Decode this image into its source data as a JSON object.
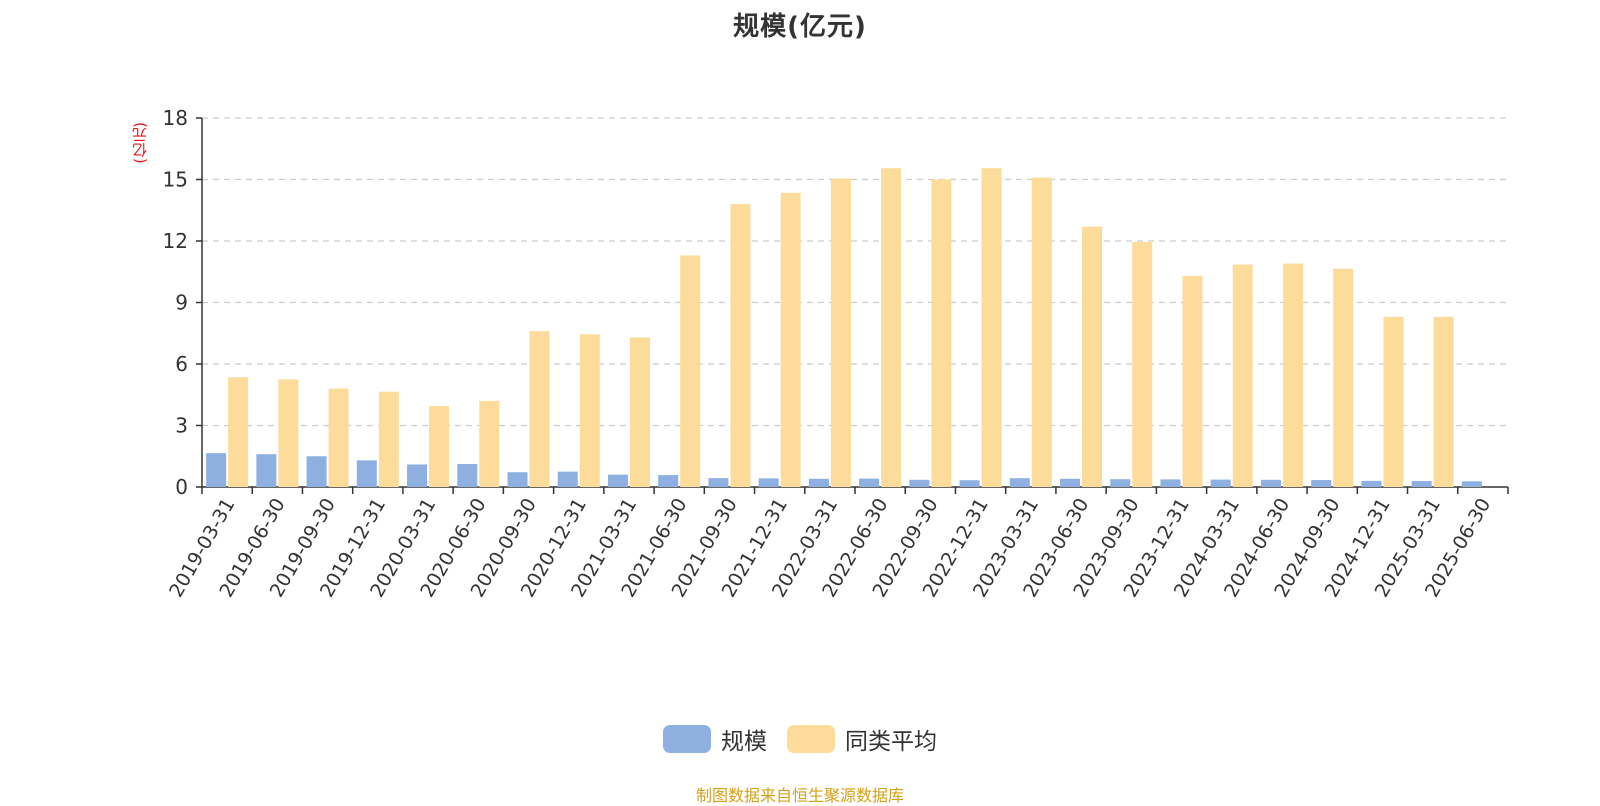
{
  "title": "规模(亿元)",
  "unit_label": "(亿元)",
  "source_note": "制图数据来自恒生聚源数据库",
  "legend": [
    {
      "label": "规模",
      "color": "#8eb0e0"
    },
    {
      "label": "同类平均",
      "color": "#fddb9b"
    }
  ],
  "colors": {
    "unit_label": "#e8141b",
    "source_note": "#d4a017",
    "grid": "#cccccc",
    "axis": "#333333"
  },
  "chart_data": {
    "type": "bar",
    "title": "规模(亿元)",
    "ylabel": "(亿元)",
    "xlabel": "",
    "ylim": [
      0,
      18
    ],
    "yticks": [
      0,
      3,
      6,
      9,
      12,
      15,
      18
    ],
    "grid": true,
    "legend_position": "bottom",
    "categories": [
      "2019-03-31",
      "2019-06-30",
      "2019-09-30",
      "2019-12-31",
      "2020-03-31",
      "2020-06-30",
      "2020-09-30",
      "2020-12-31",
      "2021-03-31",
      "2021-06-30",
      "2021-09-30",
      "2021-12-31",
      "2022-03-31",
      "2022-06-30",
      "2022-09-30",
      "2022-12-31",
      "2023-03-31",
      "2023-06-30",
      "2023-09-30",
      "2023-12-31",
      "2024-03-31",
      "2024-06-30",
      "2024-09-30",
      "2024-12-31",
      "2025-03-31",
      "2025-06-30"
    ],
    "series": [
      {
        "name": "规模",
        "color": "#8eb0e0",
        "values": [
          1.65,
          1.6,
          1.5,
          1.3,
          1.1,
          1.12,
          0.72,
          0.75,
          0.6,
          0.58,
          0.43,
          0.42,
          0.4,
          0.41,
          0.35,
          0.33,
          0.43,
          0.4,
          0.38,
          0.37,
          0.36,
          0.35,
          0.34,
          0.3,
          0.29,
          0.28
        ]
      },
      {
        "name": "同类平均",
        "color": "#fddb9b",
        "values": [
          5.35,
          5.25,
          4.8,
          4.65,
          3.95,
          4.2,
          7.6,
          7.45,
          7.3,
          11.3,
          13.8,
          14.35,
          15.05,
          15.55,
          15.0,
          15.55,
          15.1,
          12.7,
          11.95,
          10.3,
          10.85,
          10.9,
          10.65,
          8.3,
          8.3,
          null
        ]
      }
    ]
  }
}
